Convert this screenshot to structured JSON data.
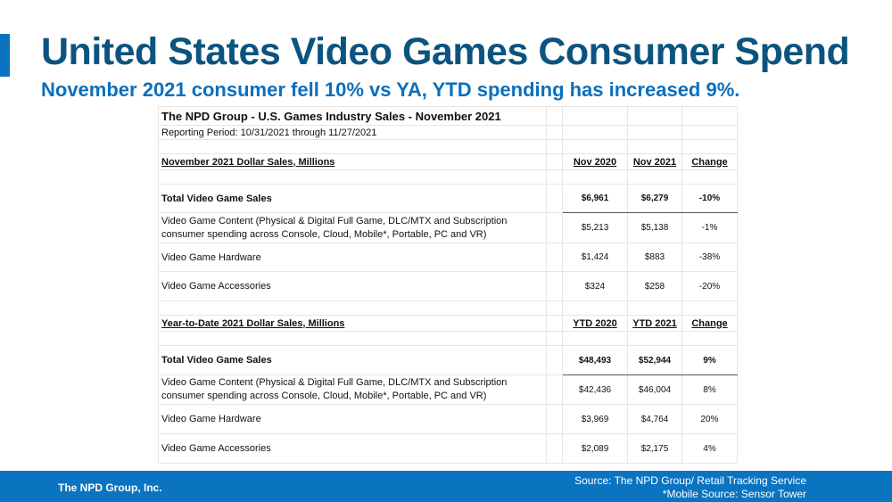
{
  "title": "United States Video Games Consumer Spend",
  "subtitle": "November 2021 consumer fell 10% vs YA, YTD spending has increased 9%.",
  "table": {
    "title": "The NPD Group - U.S. Games Industry Sales - November 2021",
    "period": "Reporting Period: 10/31/2021 through 11/27/2021",
    "monthly": {
      "header": "November 2021 Dollar Sales, Millions",
      "cols": [
        "Nov 2020",
        "Nov 2021",
        "Change"
      ],
      "rows": [
        {
          "label": "Total Video Game Sales",
          "v": [
            "$6,961",
            "$6,279",
            "-10%"
          ]
        },
        {
          "label": "Video Game Content (Physical & Digital Full Game, DLC/MTX and Subscription consumer spending across Console, Cloud, Mobile*, Portable, PC and VR)",
          "v": [
            "$5,213",
            "$5,138",
            "-1%"
          ]
        },
        {
          "label": "Video Game Hardware",
          "v": [
            "$1,424",
            "$883",
            "-38%"
          ]
        },
        {
          "label": "Video Game Accessories",
          "v": [
            "$324",
            "$258",
            "-20%"
          ]
        }
      ]
    },
    "ytd": {
      "header": "Year-to-Date 2021 Dollar Sales, Millions",
      "cols": [
        "YTD 2020",
        "YTD 2021",
        "Change"
      ],
      "rows": [
        {
          "label": "Total Video Game Sales",
          "v": [
            "$48,493",
            "$52,944",
            "9%"
          ]
        },
        {
          "label": "Video Game Content (Physical & Digital Full Game, DLC/MTX and Subscription consumer spending across Console, Cloud, Mobile*, Portable, PC and VR)",
          "v": [
            "$42,436",
            "$46,004",
            "8%"
          ]
        },
        {
          "label": "Video Game Hardware",
          "v": [
            "$3,969",
            "$4,764",
            "20%"
          ]
        },
        {
          "label": "Video Game Accessories",
          "v": [
            "$2,089",
            "$2,175",
            "4%"
          ]
        }
      ]
    }
  },
  "footer": {
    "company": "The NPD Group, Inc.",
    "source": "Source: The NPD Group/ Retail Tracking Service",
    "mobile_source": "*Mobile Source: Sensor Tower"
  }
}
